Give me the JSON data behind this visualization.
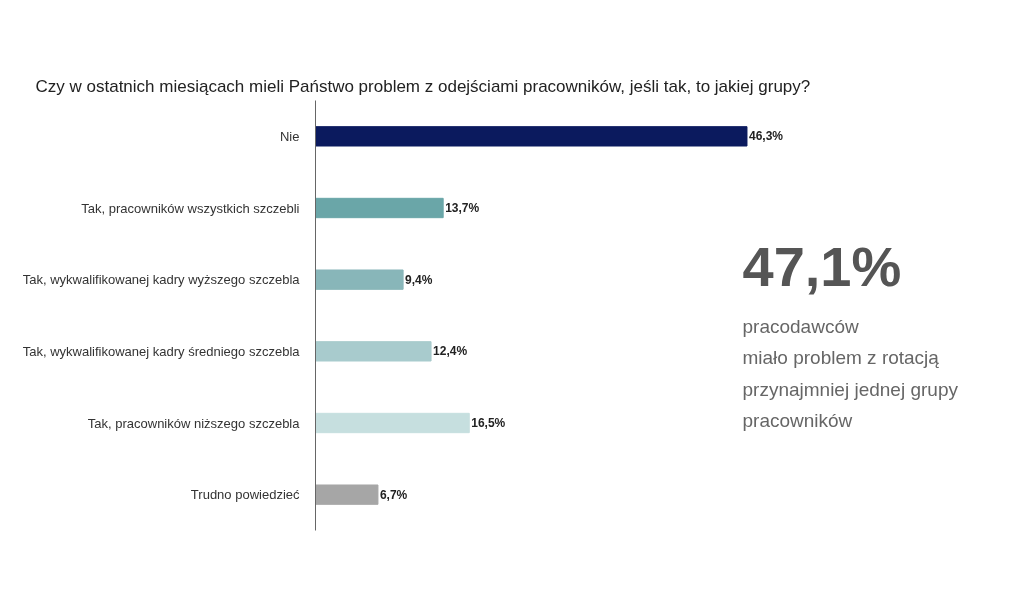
{
  "chart_data": {
    "type": "bar",
    "orientation": "horizontal",
    "title": "Czy w ostatnich miesiącach mieli Państwo problem z odejściami pracowników, jeśli tak, to jakiej grupy?",
    "categories": [
      "Nie",
      "Tak, pracowników wszystkich szczebli",
      "Tak, wykwalifikowanej kadry wyższego szczebla",
      "Tak, wykwalifikowanej kadry średniego szczebla",
      "Tak, pracowników niższego szczebla",
      "Trudno powiedzieć"
    ],
    "values": [
      46.3,
      13.7,
      9.4,
      12.4,
      16.5,
      6.7
    ],
    "colors": [
      "#0b1a5e",
      "#6aa6a8",
      "#88b6b9",
      "#a8cbcd",
      "#c6dfdf",
      "#a6a6a6"
    ],
    "value_labels": [
      "46,3%",
      "13,7%",
      "9,4%",
      "12,4%",
      "16,5%",
      "6,7%"
    ],
    "annotations": [
      "47,1%",
      "pracodawców\nmiało problem z rotacją\nprzynajmniej jednej grupy\npracowników"
    ]
  }
}
